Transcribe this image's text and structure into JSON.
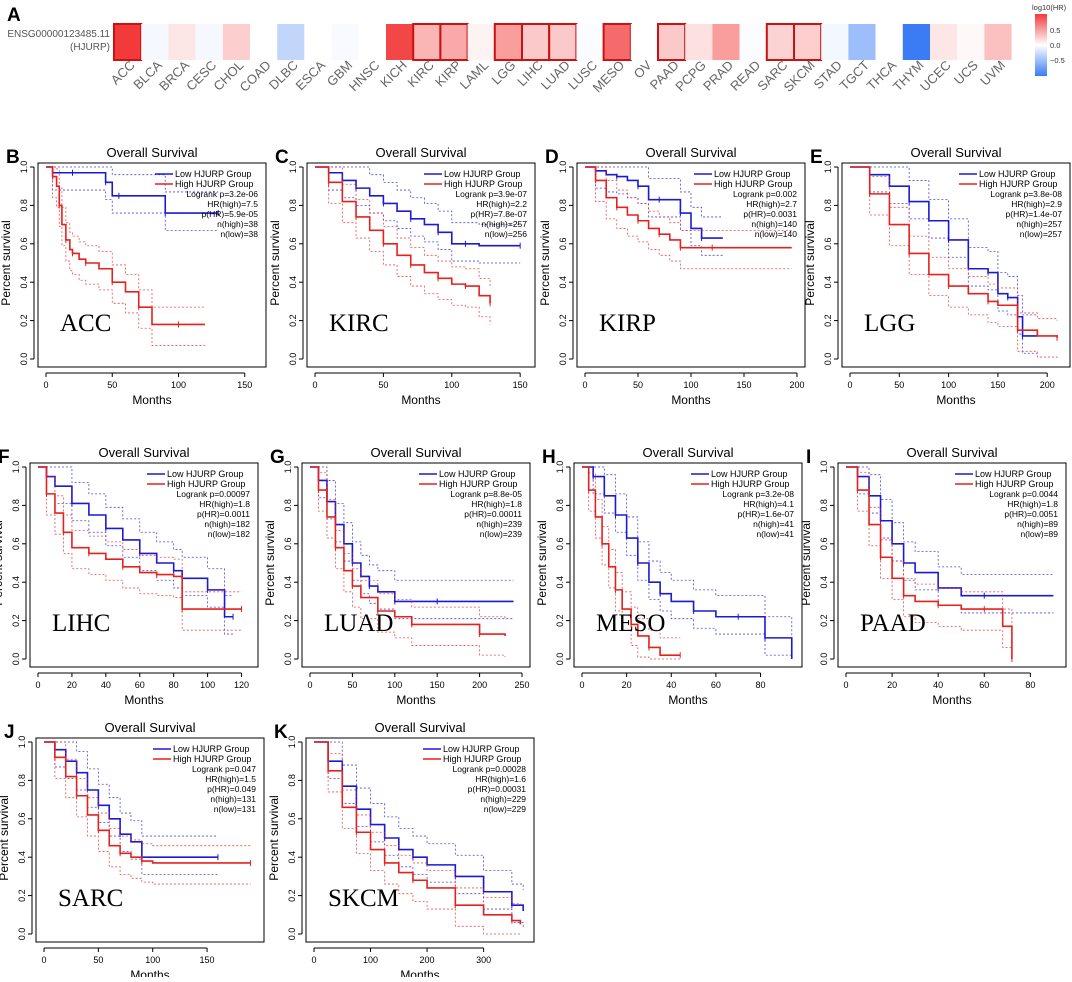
{
  "heatmap": {
    "panel_letter": "A",
    "gene_id": "ENSG00000123485.11",
    "gene_symbol": "(HJURP)",
    "legend_title": "log10(HR)",
    "legend_ticks": [
      "0.5",
      "0.0",
      "−0.5"
    ],
    "colors": {
      "high": "#f23a3a",
      "mid": "#ffffff",
      "low": "#3b7cf5",
      "highlight_border": "#cc1111"
    },
    "cells": [
      {
        "name": "ACC",
        "v": 0.8,
        "sig": true
      },
      {
        "name": "BLCA",
        "v": -0.04,
        "sig": false
      },
      {
        "name": "BRCA",
        "v": 0.1,
        "sig": false
      },
      {
        "name": "CESC",
        "v": -0.04,
        "sig": false
      },
      {
        "name": "CHOL",
        "v": 0.2,
        "sig": false
      },
      {
        "name": "COAD",
        "v": 0.0,
        "sig": false
      },
      {
        "name": "DLBC",
        "v": -0.25,
        "sig": false
      },
      {
        "name": "ESCA",
        "v": 0.0,
        "sig": false
      },
      {
        "name": "GBM",
        "v": -0.03,
        "sig": false
      },
      {
        "name": "HNSC",
        "v": 0.0,
        "sig": false
      },
      {
        "name": "KICH",
        "v": 0.75,
        "sig": false
      },
      {
        "name": "KIRC",
        "v": 0.3,
        "sig": true
      },
      {
        "name": "KIRP",
        "v": 0.35,
        "sig": true
      },
      {
        "name": "LAML",
        "v": 0.05,
        "sig": false
      },
      {
        "name": "LGG",
        "v": 0.4,
        "sig": true
      },
      {
        "name": "LIHC",
        "v": 0.22,
        "sig": true
      },
      {
        "name": "LUAD",
        "v": 0.22,
        "sig": true
      },
      {
        "name": "LUSC",
        "v": -0.02,
        "sig": false
      },
      {
        "name": "MESO",
        "v": 0.6,
        "sig": true
      },
      {
        "name": "OV",
        "v": 0.0,
        "sig": false
      },
      {
        "name": "PAAD",
        "v": 0.22,
        "sig": true
      },
      {
        "name": "PCPG",
        "v": 0.12,
        "sig": false
      },
      {
        "name": "PRAD",
        "v": 0.4,
        "sig": false
      },
      {
        "name": "READ",
        "v": -0.02,
        "sig": false
      },
      {
        "name": "SARC",
        "v": 0.18,
        "sig": true
      },
      {
        "name": "SKCM",
        "v": 0.2,
        "sig": true
      },
      {
        "name": "STAD",
        "v": -0.05,
        "sig": false
      },
      {
        "name": "TGCT",
        "v": -0.4,
        "sig": false
      },
      {
        "name": "THCA",
        "v": 0.0,
        "sig": false
      },
      {
        "name": "THYM",
        "v": -0.8,
        "sig": false
      },
      {
        "name": "UCEC",
        "v": 0.1,
        "sig": false
      },
      {
        "name": "UCS",
        "v": 0.03,
        "sig": false
      },
      {
        "name": "UVM",
        "v": 0.25,
        "sig": false
      }
    ]
  },
  "survival_common": {
    "title": "Overall Survival",
    "xlabel": "Months",
    "ylabel": "Percent survival",
    "legend_low": "Low HJURP Group",
    "legend_high": "High HJURP Group",
    "yticks": [
      "0.0",
      "0.2",
      "0.4",
      "0.6",
      "0.8",
      "1.0"
    ],
    "colors": {
      "low": "#1a1ad6",
      "high": "#e8201c"
    }
  },
  "chart_data": [
    {
      "type": "line",
      "panel": "B",
      "cancer": "ACC",
      "xlim": [
        0,
        160
      ],
      "xticks": [
        0,
        50,
        100,
        150
      ],
      "stats": [
        "Logrank p=3.2e-06",
        "HR(high)=7.5",
        "p(HR)=5.9e-05",
        "n(high)=38",
        "n(low)=38"
      ],
      "series": [
        {
          "name": "Low HJURP Group",
          "x": [
            0,
            5,
            10,
            20,
            40,
            45,
            50,
            55,
            60,
            90,
            100,
            130
          ],
          "y": [
            1,
            0.97,
            0.97,
            0.97,
            0.97,
            0.92,
            0.85,
            0.85,
            0.85,
            0.76,
            0.76,
            0.76
          ]
        },
        {
          "name": "High HJURP Group",
          "x": [
            0,
            5,
            8,
            10,
            12,
            15,
            18,
            20,
            25,
            30,
            40,
            50,
            60,
            70,
            80,
            100,
            120
          ],
          "y": [
            1,
            0.95,
            0.9,
            0.8,
            0.7,
            0.62,
            0.57,
            0.55,
            0.52,
            0.5,
            0.47,
            0.4,
            0.35,
            0.27,
            0.18,
            0.18,
            0.18
          ]
        }
      ]
    },
    {
      "type": "line",
      "panel": "C",
      "cancer": "KIRC",
      "xlim": [
        0,
        155
      ],
      "xticks": [
        0,
        50,
        100,
        150
      ],
      "stats": [
        "Logrank p=3.9e-07",
        "HR(high)=2.2",
        "p(HR)=7.8e-07",
        "n(high)=257",
        "n(low)=256"
      ],
      "series": [
        {
          "name": "Low HJURP Group",
          "x": [
            0,
            10,
            20,
            30,
            40,
            50,
            60,
            70,
            80,
            90,
            100,
            110,
            120,
            150
          ],
          "y": [
            1,
            0.97,
            0.93,
            0.89,
            0.85,
            0.81,
            0.77,
            0.73,
            0.7,
            0.66,
            0.6,
            0.6,
            0.59,
            0.59
          ]
        },
        {
          "name": "High HJURP Group",
          "x": [
            0,
            10,
            20,
            30,
            40,
            50,
            60,
            70,
            80,
            90,
            100,
            110,
            120,
            128
          ],
          "y": [
            1,
            0.92,
            0.82,
            0.74,
            0.67,
            0.6,
            0.54,
            0.49,
            0.45,
            0.42,
            0.39,
            0.38,
            0.33,
            0.29
          ]
        }
      ]
    },
    {
      "type": "line",
      "panel": "D",
      "cancer": "KIRP",
      "xlim": [
        0,
        200
      ],
      "xticks": [
        0,
        50,
        100,
        150,
        200
      ],
      "stats": [
        "Logrank p=0.002",
        "HR(high)=2.7",
        "p(HR)=0.0031",
        "n(high)=140",
        "n(low)=140"
      ],
      "series": [
        {
          "name": "Low HJURP Group",
          "x": [
            0,
            10,
            20,
            30,
            40,
            50,
            60,
            70,
            80,
            90,
            100,
            110,
            130
          ],
          "y": [
            1,
            0.98,
            0.96,
            0.95,
            0.93,
            0.9,
            0.83,
            0.83,
            0.83,
            0.76,
            0.68,
            0.63,
            0.63
          ]
        },
        {
          "name": "High HJURP Group",
          "x": [
            0,
            10,
            20,
            30,
            40,
            50,
            60,
            70,
            80,
            90,
            100,
            120,
            195
          ],
          "y": [
            1,
            0.93,
            0.84,
            0.79,
            0.75,
            0.72,
            0.68,
            0.65,
            0.62,
            0.58,
            0.58,
            0.58,
            0.58
          ]
        }
      ]
    },
    {
      "type": "line",
      "panel": "E",
      "cancer": "LGG",
      "xlim": [
        0,
        215
      ],
      "xticks": [
        0,
        50,
        100,
        150,
        200
      ],
      "stats": [
        "Logrank p=3.8e-08",
        "HR(high)=2.9",
        "p(HR)=1.4e-07",
        "n(high)=257",
        "n(low)=257"
      ],
      "series": [
        {
          "name": "Low HJURP Group",
          "x": [
            0,
            20,
            40,
            60,
            80,
            100,
            120,
            140,
            150,
            160,
            170,
            175,
            190
          ],
          "y": [
            1,
            0.96,
            0.9,
            0.82,
            0.72,
            0.62,
            0.47,
            0.45,
            0.34,
            0.32,
            0.22,
            0.12,
            0.12
          ]
        },
        {
          "name": "High HJURP Group",
          "x": [
            0,
            20,
            40,
            60,
            80,
            100,
            120,
            140,
            150,
            170,
            190,
            210
          ],
          "y": [
            1,
            0.86,
            0.7,
            0.55,
            0.44,
            0.38,
            0.34,
            0.3,
            0.28,
            0.15,
            0.12,
            0.11
          ]
        }
      ]
    },
    {
      "type": "line",
      "panel": "F",
      "cancer": "LIHC",
      "xlim": [
        0,
        125
      ],
      "xticks": [
        0,
        20,
        40,
        60,
        80,
        100,
        120
      ],
      "stats": [
        "Logrank p=0.00097",
        "HR(high)=1.8",
        "p(HR)=0.0011",
        "n(high)=182",
        "n(low)=182"
      ],
      "series": [
        {
          "name": "Low HJURP Group",
          "x": [
            0,
            5,
            10,
            20,
            30,
            40,
            50,
            60,
            70,
            80,
            85,
            100,
            110,
            115
          ],
          "y": [
            1,
            0.95,
            0.9,
            0.81,
            0.75,
            0.68,
            0.62,
            0.55,
            0.5,
            0.46,
            0.42,
            0.36,
            0.22,
            0.22
          ]
        },
        {
          "name": "High HJURP Group",
          "x": [
            0,
            5,
            10,
            15,
            20,
            30,
            40,
            50,
            60,
            70,
            80,
            85,
            100,
            120
          ],
          "y": [
            1,
            0.86,
            0.76,
            0.66,
            0.58,
            0.55,
            0.52,
            0.48,
            0.45,
            0.44,
            0.43,
            0.26,
            0.26,
            0.26
          ]
        }
      ]
    },
    {
      "type": "line",
      "panel": "G",
      "cancer": "LUAD",
      "xlim": [
        0,
        250
      ],
      "xticks": [
        0,
        50,
        100,
        150,
        200,
        250
      ],
      "stats": [
        "Logrank p=8.8e-05",
        "HR(high)=1.8",
        "p(HR)=0.00011",
        "n(high)=239",
        "n(low)=239"
      ],
      "series": [
        {
          "name": "Low HJURP Group",
          "x": [
            0,
            10,
            20,
            30,
            40,
            50,
            60,
            70,
            80,
            100,
            120,
            150,
            240
          ],
          "y": [
            1,
            0.93,
            0.82,
            0.7,
            0.6,
            0.5,
            0.43,
            0.38,
            0.35,
            0.3,
            0.3,
            0.3,
            0.3
          ]
        },
        {
          "name": "High HJURP Group",
          "x": [
            0,
            10,
            20,
            30,
            40,
            50,
            60,
            80,
            100,
            120,
            150,
            200,
            230
          ],
          "y": [
            1,
            0.88,
            0.74,
            0.58,
            0.46,
            0.38,
            0.32,
            0.25,
            0.22,
            0.18,
            0.18,
            0.13,
            0.12
          ]
        }
      ]
    },
    {
      "type": "line",
      "panel": "H",
      "cancer": "MESO",
      "xlim": [
        0,
        95
      ],
      "xticks": [
        0,
        20,
        40,
        60,
        80
      ],
      "stats": [
        "Logrank p=3.2e-08",
        "HR(high)=4.1",
        "p(HR)=1.6e-07",
        "n(high)=41",
        "n(low)=41"
      ],
      "series": [
        {
          "name": "Low HJURP Group",
          "x": [
            0,
            5,
            10,
            15,
            20,
            25,
            30,
            35,
            40,
            50,
            60,
            70,
            80,
            82,
            94
          ],
          "y": [
            1,
            0.95,
            0.85,
            0.75,
            0.63,
            0.5,
            0.4,
            0.34,
            0.3,
            0.25,
            0.22,
            0.22,
            0.22,
            0.11,
            0
          ]
        },
        {
          "name": "High HJURP Group",
          "x": [
            0,
            3,
            6,
            9,
            12,
            15,
            18,
            22,
            25,
            30,
            35,
            44
          ],
          "y": [
            1,
            0.88,
            0.74,
            0.6,
            0.48,
            0.36,
            0.26,
            0.18,
            0.12,
            0.06,
            0.02,
            0.02
          ]
        }
      ]
    },
    {
      "type": "line",
      "panel": "I",
      "cancer": "PAAD",
      "xlim": [
        0,
        92
      ],
      "xticks": [
        0,
        20,
        40,
        60,
        80
      ],
      "stats": [
        "Logrank p=0.0044",
        "HR(high)=1.8",
        "p(HR)=0.0051",
        "n(high)=89",
        "n(low)=89"
      ],
      "series": [
        {
          "name": "Low HJURP Group",
          "x": [
            0,
            5,
            10,
            15,
            20,
            25,
            30,
            40,
            50,
            60,
            90
          ],
          "y": [
            1,
            0.95,
            0.85,
            0.72,
            0.6,
            0.5,
            0.45,
            0.37,
            0.33,
            0.33,
            0.33
          ]
        },
        {
          "name": "High HJURP Group",
          "x": [
            0,
            5,
            10,
            15,
            20,
            25,
            30,
            40,
            50,
            60,
            68,
            72
          ],
          "y": [
            1,
            0.88,
            0.7,
            0.53,
            0.42,
            0.33,
            0.3,
            0.28,
            0.26,
            0.26,
            0.17,
            0
          ]
        }
      ]
    },
    {
      "type": "line",
      "panel": "J",
      "cancer": "SARC",
      "xlim": [
        0,
        195
      ],
      "xticks": [
        0,
        50,
        100,
        150
      ],
      "stats": [
        "Logrank p=0.047",
        "HR(high)=1.5",
        "p(HR)=0.049",
        "n(high)=131",
        "n(low)=131"
      ],
      "series": [
        {
          "name": "Low HJURP Group",
          "x": [
            0,
            10,
            20,
            30,
            40,
            50,
            60,
            70,
            80,
            90,
            100,
            160
          ],
          "y": [
            1,
            0.96,
            0.9,
            0.84,
            0.75,
            0.67,
            0.6,
            0.52,
            0.48,
            0.4,
            0.4,
            0.4
          ]
        },
        {
          "name": "High HJURP Group",
          "x": [
            0,
            10,
            20,
            30,
            40,
            50,
            60,
            70,
            80,
            90,
            100,
            190
          ],
          "y": [
            1,
            0.92,
            0.82,
            0.72,
            0.62,
            0.54,
            0.46,
            0.42,
            0.4,
            0.38,
            0.37,
            0.37
          ]
        }
      ]
    },
    {
      "type": "line",
      "panel": "K",
      "cancer": "SKCM",
      "xlim": [
        0,
        375
      ],
      "xticks": [
        0,
        100,
        200,
        300
      ],
      "stats": [
        "Logrank p=0.00028",
        "HR(high)=1.6",
        "p(HR)=0.00031",
        "n(high)=229",
        "n(low)=229"
      ],
      "series": [
        {
          "name": "Low HJURP Group",
          "x": [
            0,
            25,
            50,
            75,
            100,
            125,
            150,
            175,
            200,
            250,
            300,
            350,
            370
          ],
          "y": [
            1,
            0.9,
            0.77,
            0.65,
            0.57,
            0.5,
            0.44,
            0.4,
            0.36,
            0.3,
            0.22,
            0.15,
            0.12
          ]
        },
        {
          "name": "High HJURP Group",
          "x": [
            0,
            25,
            50,
            75,
            100,
            125,
            150,
            175,
            200,
            250,
            300,
            350,
            365
          ],
          "y": [
            1,
            0.85,
            0.66,
            0.53,
            0.44,
            0.37,
            0.32,
            0.28,
            0.24,
            0.15,
            0.1,
            0.07,
            0.05
          ]
        }
      ]
    }
  ]
}
